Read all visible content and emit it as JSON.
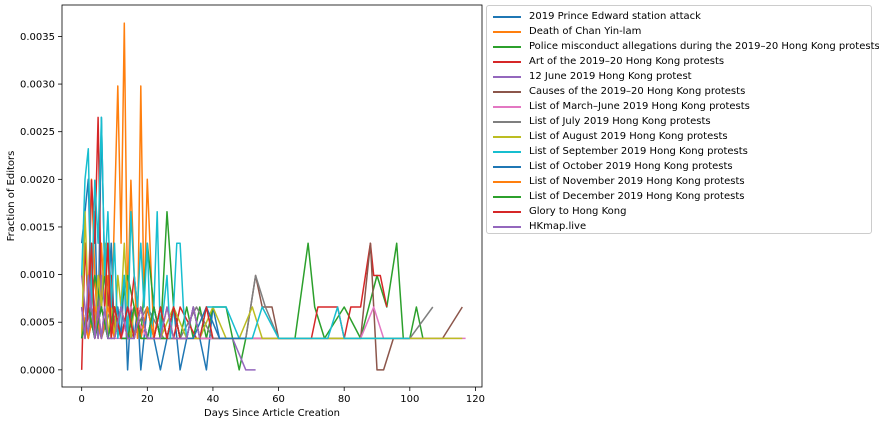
{
  "chart_data": {
    "type": "line",
    "title": "",
    "xlabel": "Days Since Article Creation",
    "ylabel": "Fraction of Editors",
    "xlim": [
      -6,
      122
    ],
    "ylim": [
      -0.00018,
      0.00383
    ],
    "xticks": [
      0,
      20,
      40,
      60,
      80,
      100,
      120
    ],
    "xtick_labels": [
      "0",
      "20",
      "40",
      "60",
      "80",
      "100",
      "120"
    ],
    "yticks": [
      0,
      0.0005,
      0.001,
      0.0015,
      0.002,
      0.0025,
      0.003,
      0.0035
    ],
    "ytick_labels": [
      "0.0000",
      "0.0005",
      "0.0010",
      "0.0015",
      "0.0020",
      "0.0025",
      "0.0030",
      "0.0035"
    ],
    "grid": false,
    "legend_position": "outside-upper-right",
    "series": [
      {
        "name": "2019 Prince Edward station attack",
        "color": "#1f77b4",
        "x": [
          0,
          1,
          2,
          3,
          4,
          5,
          6,
          7,
          8,
          9,
          10,
          11,
          12,
          13,
          14,
          15,
          16,
          17,
          18,
          19,
          20,
          22,
          24,
          26,
          28,
          30,
          32,
          34,
          36,
          38,
          40,
          42
        ],
        "y": [
          0.00133,
          0.00166,
          0.002,
          0.00066,
          0.00166,
          0.00033,
          0.00265,
          0.00099,
          0.00066,
          0.00133,
          0.00033,
          0.00066,
          0.00033,
          0.00099,
          0.0,
          0.00066,
          0.00033,
          0.00066,
          0.0,
          0.00033,
          0.00066,
          0.00033,
          0.0,
          0.00033,
          0.00066,
          0.0,
          0.00033,
          0.00066,
          0.00033,
          0.0,
          0.00066,
          0.00033
        ]
      },
      {
        "name": "Death of Chan Yin-lam",
        "color": "#ff7f0e",
        "x": [
          0,
          1,
          2,
          3,
          4,
          5,
          6,
          7,
          8,
          9,
          10,
          11,
          12,
          13,
          14,
          15,
          16,
          17,
          18,
          19,
          20,
          22,
          24,
          26,
          28
        ],
        "y": [
          0.00033,
          0.00133,
          0.00066,
          0.002,
          0.00099,
          0.00033,
          0.00133,
          0.00066,
          0.00099,
          0.00033,
          0.00166,
          0.00298,
          0.00133,
          0.00364,
          0.00066,
          0.00199,
          0.00099,
          0.00033,
          0.00298,
          0.00066,
          0.002,
          0.00033,
          0.00066,
          0.00033,
          0.00066
        ]
      },
      {
        "name": "Police misconduct allegations during the 2019–20 Hong Kong protests",
        "color": "#2ca02c",
        "x": [
          0,
          2,
          4,
          6,
          8,
          10,
          12,
          14,
          16,
          18,
          20,
          22,
          24,
          26,
          28,
          30,
          32,
          34,
          36,
          38,
          40,
          42,
          44,
          46,
          48,
          50,
          55,
          60,
          65,
          69,
          71,
          74,
          80,
          85,
          90,
          93,
          96,
          98,
          100,
          102,
          104
        ],
        "y": [
          0.00066,
          0.00033,
          0.00099,
          0.00066,
          0.00133,
          0.00033,
          0.00066,
          0.00099,
          0.00066,
          0.00033,
          0.00133,
          0.00066,
          0.00033,
          0.00166,
          0.00066,
          0.00033,
          0.00066,
          0.00033,
          0.00066,
          0.00033,
          0.00066,
          0.00066,
          0.00066,
          0.00033,
          0.0,
          0.00033,
          0.00033,
          0.00033,
          0.00033,
          0.00133,
          0.00066,
          0.00033,
          0.00066,
          0.00033,
          0.00099,
          0.00066,
          0.00133,
          0.00033,
          0.00033,
          0.00066,
          0.00033
        ]
      },
      {
        "name": "Art of the 2019–20 Hong Kong protests",
        "color": "#d62728",
        "x": [
          0,
          1,
          2,
          3,
          4,
          5,
          6,
          7,
          8,
          9,
          10,
          12,
          14,
          16,
          18,
          20,
          22,
          24,
          26,
          28,
          30,
          35,
          40,
          45,
          50,
          55,
          60,
          65,
          70,
          72,
          74,
          78,
          80,
          82,
          85,
          88,
          89,
          91,
          93
        ],
        "y": [
          0.0,
          0.00133,
          0.00066,
          0.00199,
          0.00133,
          0.00265,
          0.00066,
          0.00133,
          0.00066,
          0.00099,
          0.00033,
          0.00066,
          0.00033,
          0.00099,
          0.00033,
          0.00066,
          0.00033,
          0.00066,
          0.00033,
          0.00033,
          0.00066,
          0.00033,
          0.00033,
          0.00033,
          0.00033,
          0.00033,
          0.00033,
          0.00033,
          0.00033,
          0.00066,
          0.00066,
          0.00066,
          0.00033,
          0.00066,
          0.00066,
          0.00133,
          0.00099,
          0.00099,
          0.00066
        ]
      },
      {
        "name": "12 June 2019 Hong Kong protest",
        "color": "#9467bd",
        "x": [
          0,
          1,
          2,
          3,
          4,
          5,
          6,
          8,
          10,
          12,
          14,
          16,
          18,
          20,
          22,
          24,
          26,
          28,
          30,
          34,
          38,
          42,
          46,
          50,
          53
        ],
        "y": [
          0.00099,
          0.00066,
          0.00033,
          0.00099,
          0.00066,
          0.00033,
          0.00099,
          0.00033,
          0.00066,
          0.00033,
          0.00066,
          0.00033,
          0.00066,
          0.00033,
          0.00066,
          0.00033,
          0.00033,
          0.00066,
          0.00033,
          0.00033,
          0.00033,
          0.00033,
          0.00033,
          0.0,
          0.0
        ]
      },
      {
        "name": "Causes of the 2019–20 Hong Kong protests",
        "color": "#8c564b",
        "x": [
          0,
          2,
          4,
          6,
          8,
          10,
          12,
          14,
          16,
          18,
          20,
          24,
          30,
          40,
          50,
          53,
          55,
          58,
          60,
          65,
          70,
          75,
          80,
          85,
          88,
          90,
          92,
          95,
          100,
          105,
          110,
          116
        ],
        "y": [
          0.00033,
          0.00066,
          0.00033,
          0.00066,
          0.00033,
          0.00033,
          0.00066,
          0.00033,
          0.00033,
          0.00066,
          0.00033,
          0.00033,
          0.00033,
          0.00033,
          0.00033,
          0.00099,
          0.00066,
          0.00066,
          0.00033,
          0.00033,
          0.00033,
          0.00033,
          0.00033,
          0.00033,
          0.00133,
          0.0,
          0.0,
          0.00033,
          0.00033,
          0.00033,
          0.00033,
          0.00066
        ]
      },
      {
        "name": "List of March–June 2019 Hong Kong protests",
        "color": "#e377c2",
        "x": [
          0,
          2,
          4,
          6,
          8,
          10,
          12,
          15,
          20,
          25,
          30,
          35,
          40,
          45,
          50,
          55,
          60,
          65,
          70,
          75,
          80,
          85,
          89,
          92,
          95,
          100,
          105,
          110,
          117
        ],
        "y": [
          0.00066,
          0.00033,
          0.00066,
          0.00033,
          0.00066,
          0.00033,
          0.00033,
          0.00066,
          0.00033,
          0.00033,
          0.00033,
          0.00033,
          0.00033,
          0.00033,
          0.00033,
          0.00033,
          0.00033,
          0.00033,
          0.00033,
          0.00033,
          0.00033,
          0.00033,
          0.00066,
          0.00033,
          0.00033,
          0.00033,
          0.00033,
          0.00033,
          0.00033
        ]
      },
      {
        "name": "List of July 2019 Hong Kong protests",
        "color": "#7f7f7f",
        "x": [
          0,
          3,
          6,
          9,
          12,
          15,
          20,
          25,
          30,
          35,
          40,
          45,
          50,
          53,
          56,
          60,
          65,
          70,
          75,
          80,
          85,
          90,
          95,
          100,
          107
        ],
        "y": [
          0.00033,
          0.00066,
          0.00033,
          0.00066,
          0.00033,
          0.00033,
          0.00066,
          0.00033,
          0.00033,
          0.00066,
          0.00033,
          0.00033,
          0.00033,
          0.00099,
          0.00066,
          0.00033,
          0.00033,
          0.00033,
          0.00033,
          0.00033,
          0.00033,
          0.00033,
          0.00033,
          0.00033,
          0.00066
        ]
      },
      {
        "name": "List of August 2019 Hong Kong protests",
        "color": "#bcbd22",
        "x": [
          0,
          1,
          2,
          3,
          4,
          5,
          6,
          7,
          8,
          9,
          10,
          11,
          12,
          13,
          14,
          15,
          16,
          18,
          20,
          24,
          28,
          32,
          36,
          40,
          44,
          48,
          52,
          55,
          60,
          70,
          80,
          90,
          100,
          110,
          116
        ],
        "y": [
          0.00033,
          0.00166,
          0.00066,
          0.00133,
          0.00033,
          0.00099,
          0.00066,
          0.00133,
          0.00033,
          0.00066,
          0.00033,
          0.00099,
          0.00066,
          0.00133,
          0.00066,
          0.00033,
          0.00066,
          0.00033,
          0.00033,
          0.00033,
          0.00066,
          0.00033,
          0.00033,
          0.00066,
          0.00033,
          0.00033,
          0.00066,
          0.00033,
          0.00033,
          0.00033,
          0.00033,
          0.00033,
          0.00033,
          0.00033,
          0.00033
        ]
      },
      {
        "name": "List of September 2019 Hong Kong protests",
        "color": "#17becf",
        "x": [
          0,
          1,
          2,
          3,
          4,
          5,
          6,
          7,
          8,
          9,
          10,
          11,
          12,
          13,
          14,
          15,
          16,
          17,
          18,
          19,
          20,
          21,
          22,
          23,
          24,
          25,
          26,
          27,
          28,
          29,
          30,
          31,
          32,
          34,
          36,
          38,
          40,
          44,
          48,
          52,
          55,
          60,
          65,
          70,
          75,
          78,
          80,
          85,
          90,
          95,
          100
        ],
        "y": [
          0.00099,
          0.002,
          0.00232,
          0.00066,
          0.00199,
          0.00133,
          0.00265,
          0.00099,
          0.00166,
          0.00066,
          0.00133,
          0.00033,
          0.00066,
          0.00099,
          0.00033,
          0.00166,
          0.00099,
          0.00066,
          0.00133,
          0.00066,
          0.00133,
          0.00033,
          0.00066,
          0.00166,
          0.00033,
          0.00066,
          0.00099,
          0.00033,
          0.00066,
          0.00133,
          0.00133,
          0.00066,
          0.00033,
          0.00066,
          0.00033,
          0.00066,
          0.00066,
          0.00066,
          0.00033,
          0.00033,
          0.00066,
          0.00033,
          0.00033,
          0.00033,
          0.00033,
          0.00066,
          0.00033,
          0.00033,
          0.00033,
          0.00033,
          0.00033
        ]
      },
      {
        "name": "List of October 2019 Hong Kong protests",
        "color": "#1f77b4",
        "x": [
          0,
          2,
          4,
          6,
          8,
          10,
          12,
          14,
          16,
          18,
          20,
          22,
          24,
          26,
          28,
          30,
          34,
          38,
          42,
          46,
          50
        ],
        "y": [
          0.00033,
          0.00066,
          0.00033,
          0.00066,
          0.00033,
          0.00066,
          0.00033,
          0.00033,
          0.00066,
          0.00033,
          0.00033,
          0.00066,
          0.00033,
          0.00033,
          0.00066,
          0.00033,
          0.00033,
          0.00066,
          0.00033,
          0.00033,
          0.00033
        ]
      },
      {
        "name": "List of November 2019 Hong Kong protests",
        "color": "#ff7f0e",
        "x": [
          0,
          2,
          4,
          6,
          8,
          10,
          12,
          14,
          16,
          18,
          20,
          22,
          24,
          26,
          28,
          30
        ],
        "y": [
          0.00066,
          0.00033,
          0.00066,
          0.00033,
          0.00066,
          0.00033,
          0.00066,
          0.00033,
          0.00066,
          0.00033,
          0.00066,
          0.00033,
          0.00033,
          0.00066,
          0.00033,
          0.00033
        ]
      },
      {
        "name": "List of December 2019 Hong Kong protests",
        "color": "#2ca02c",
        "x": [
          0,
          2,
          4,
          6,
          8,
          10,
          12,
          14,
          16,
          18,
          20,
          22,
          24,
          26,
          28,
          30
        ],
        "y": [
          0.00033,
          0.00066,
          0.00033,
          0.00066,
          0.00033,
          0.00066,
          0.00033,
          0.00033,
          0.00066,
          0.00033,
          0.00033,
          0.00066,
          0.00033,
          0.00033,
          0.00066,
          0.00033
        ]
      },
      {
        "name": "Glory to Hong Kong",
        "color": "#d62728",
        "x": [
          0,
          1,
          2,
          3,
          4,
          5,
          6,
          7,
          8,
          9,
          10,
          12,
          14,
          16,
          18,
          20,
          22,
          24,
          26,
          28,
          30,
          32,
          34,
          36,
          38,
          40
        ],
        "y": [
          0.00066,
          0.00033,
          0.00066,
          0.00133,
          0.00033,
          0.00066,
          0.00033,
          0.00066,
          0.00133,
          0.00033,
          0.00066,
          0.00033,
          0.00066,
          0.00033,
          0.00066,
          0.00033,
          0.00033,
          0.00066,
          0.00033,
          0.00066,
          0.00033,
          0.00033,
          0.00066,
          0.00033,
          0.00066,
          0.00033
        ]
      },
      {
        "name": "HKmap.live",
        "color": "#9467bd",
        "x": [
          0,
          1,
          2,
          3,
          4,
          5,
          6,
          7,
          8,
          10,
          12,
          14,
          16,
          18,
          20,
          22,
          24,
          26,
          28,
          30,
          32,
          34,
          36
        ],
        "y": [
          0.00066,
          0.00033,
          0.00099,
          0.00066,
          0.00033,
          0.00066,
          0.00033,
          0.00066,
          0.00033,
          0.00033,
          0.00066,
          0.00033,
          0.00033,
          0.00066,
          0.00033,
          0.00033,
          0.00033,
          0.00066,
          0.00033,
          0.00033,
          0.00033,
          0.00066,
          0.00033
        ]
      }
    ]
  }
}
